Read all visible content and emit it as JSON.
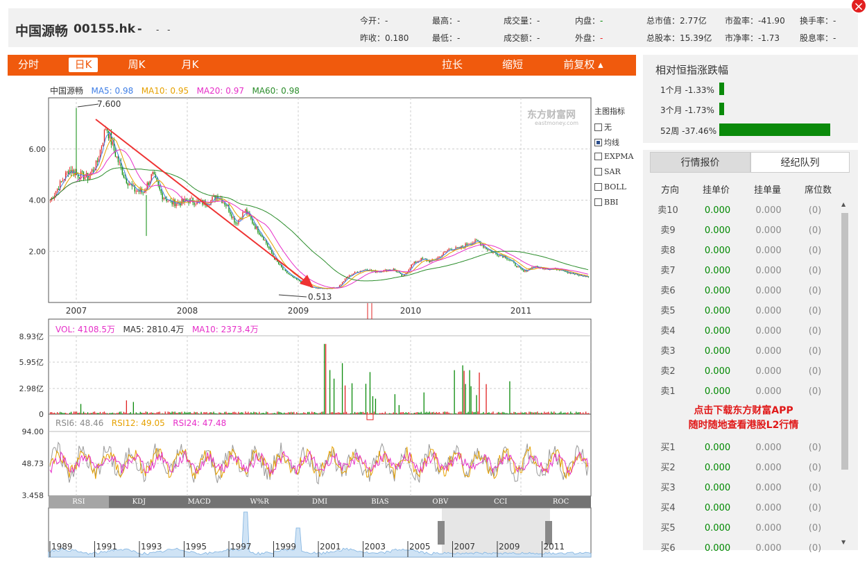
{
  "header": {
    "name": "中国源畅",
    "code": "00155.hk",
    "price": "-",
    "change": "-",
    "change_pct": "-",
    "quotes": [
      {
        "label": "今开：",
        "value": "-",
        "color": "normal"
      },
      {
        "label": "最高：",
        "value": "-",
        "color": "normal"
      },
      {
        "label": "成交量：",
        "value": "-",
        "color": "normal"
      },
      {
        "label": "内盘：",
        "value": "-",
        "color": "green"
      },
      {
        "label": "总市值：",
        "value": "2.77亿",
        "color": "normal"
      },
      {
        "label": "市盈率：",
        "value": "-41.90",
        "color": "normal"
      },
      {
        "label": "换手率：",
        "value": "-",
        "color": "normal"
      },
      {
        "label": "昨收：",
        "value": "0.180",
        "color": "normal"
      },
      {
        "label": "最低：",
        "value": "-",
        "color": "normal"
      },
      {
        "label": "成交额：",
        "value": "-",
        "color": "normal"
      },
      {
        "label": "外盘：",
        "value": "-",
        "color": "red"
      },
      {
        "label": "总股本：",
        "value": "15.39亿",
        "color": "normal"
      },
      {
        "label": "市净率：",
        "value": "-1.73",
        "color": "normal"
      },
      {
        "label": "股息率：",
        "value": "-",
        "color": "normal"
      }
    ]
  },
  "close_label": "×",
  "tabs": {
    "fenshi": "分时",
    "rik": "日K",
    "zhouk": "周K",
    "yuek": "月K",
    "lachang": "拉长",
    "suoduan": "缩短",
    "fuquan": "前复权 ▴"
  },
  "ma_legend": {
    "name": "中国源畅",
    "ma5": "MA5: 0.98",
    "ma10": "MA10: 0.95",
    "ma20": "MA20: 0.97",
    "ma60": "MA60: 0.98"
  },
  "vol_legend": {
    "vol": "VOL: 4108.5万",
    "ma5": "MA5: 2810.4万",
    "ma10": "MA10: 2373.4万"
  },
  "rsi_legend": {
    "rsi6": "RSI6: 48.46",
    "rsi12": "RSI12: 49.05",
    "rsi24": "RSI24: 47.48"
  },
  "watermark": {
    "cn": "东方财富网",
    "en": "eastmoney.com"
  },
  "indicators": {
    "title": "主图指标",
    "items": [
      {
        "label": "无",
        "checked": false
      },
      {
        "label": "均线",
        "checked": true
      },
      {
        "label": "EXPMA",
        "checked": false
      },
      {
        "label": "SAR",
        "checked": false
      },
      {
        "label": "BOLL",
        "checked": false
      },
      {
        "label": "BBI",
        "checked": false
      }
    ]
  },
  "sub_tabs": [
    "RSI",
    "KDJ",
    "MACD",
    "W%R",
    "DMI",
    "BIAS",
    "OBV",
    "CCI",
    "ROC"
  ],
  "chart_data": [
    {
      "type": "candlestick",
      "title": "中国源畅",
      "x": [
        "2007",
        "2008",
        "2009",
        "2010",
        "2011"
      ],
      "ytick_labels": [
        "6.00",
        "4.00",
        "2.00"
      ],
      "ylim": [
        0,
        8.0
      ],
      "annotations": [
        {
          "text": "7.600",
          "value": 7.6
        },
        {
          "text": "0.513",
          "value": 0.513
        }
      ],
      "close_trend": [
        4.0,
        4.6,
        5.2,
        5.0,
        4.9,
        5.4,
        6.9,
        5.8,
        4.9,
        4.4,
        4.3,
        5.0,
        4.2,
        3.9,
        3.9,
        4.0,
        3.9,
        3.9,
        4.2,
        3.8,
        3.1,
        3.6,
        3.0,
        2.5,
        1.8,
        1.3,
        1.0,
        0.8,
        0.6,
        0.55,
        0.55,
        0.6,
        1.0,
        1.2,
        1.3,
        1.2,
        1.25,
        1.3,
        1.0,
        1.5,
        1.7,
        1.6,
        1.8,
        2.1,
        2.1,
        2.3,
        2.4,
        2.1,
        1.9,
        1.8,
        1.5,
        1.2,
        1.4,
        1.35,
        1.3,
        1.3,
        1.15,
        1.05,
        1.0
      ]
    },
    {
      "type": "bar",
      "title": "VOL",
      "ytick_labels": [
        "8.93亿",
        "5.95亿",
        "2.98亿",
        "0"
      ],
      "ylim": [
        0,
        8.93
      ]
    },
    {
      "type": "line",
      "title": "RSI",
      "ytick_labels": [
        "94.00",
        "48.73",
        "3.458"
      ],
      "ylim": [
        3.458,
        94
      ],
      "series": [
        {
          "name": "RSI6"
        },
        {
          "name": "RSI12"
        },
        {
          "name": "RSI24"
        }
      ]
    },
    {
      "type": "area",
      "title": "overview",
      "x": [
        "1989",
        "1991",
        "1993",
        "1995",
        "1997",
        "1999",
        "2001",
        "2003",
        "2005",
        "2007",
        "2009",
        "2011"
      ]
    }
  ],
  "relative": {
    "title": "相对恒指涨跌幅",
    "rows": [
      {
        "label": "1个月 -1.33%",
        "value": -1.33
      },
      {
        "label": "3个月 -1.73%",
        "value": -1.73
      },
      {
        "label": "52周 -37.46%",
        "value": -37.46
      }
    ]
  },
  "quote_tabs": {
    "active": "行情报价",
    "other": "经纪队列"
  },
  "quote_headers": [
    "方向",
    "挂单价",
    "挂单量",
    "席位数"
  ],
  "orderbook": {
    "sell": [
      {
        "label": "卖10",
        "price": "0.000",
        "size": "0.000",
        "count": "(0)"
      },
      {
        "label": "卖9",
        "price": "0.000",
        "size": "0.000",
        "count": "(0)"
      },
      {
        "label": "卖8",
        "price": "0.000",
        "size": "0.000",
        "count": "(0)"
      },
      {
        "label": "卖7",
        "price": "0.000",
        "size": "0.000",
        "count": "(0)"
      },
      {
        "label": "卖6",
        "price": "0.000",
        "size": "0.000",
        "count": "(0)"
      },
      {
        "label": "卖5",
        "price": "0.000",
        "size": "0.000",
        "count": "(0)"
      },
      {
        "label": "卖4",
        "price": "0.000",
        "size": "0.000",
        "count": "(0)"
      },
      {
        "label": "卖3",
        "price": "0.000",
        "size": "0.000",
        "count": "(0)"
      },
      {
        "label": "卖2",
        "price": "0.000",
        "size": "0.000",
        "count": "(0)"
      },
      {
        "label": "卖1",
        "price": "0.000",
        "size": "0.000",
        "count": "(0)"
      }
    ],
    "buy": [
      {
        "label": "买1",
        "price": "0.000",
        "size": "0.000",
        "count": "(0)"
      },
      {
        "label": "买2",
        "price": "0.000",
        "size": "0.000",
        "count": "(0)"
      },
      {
        "label": "买3",
        "price": "0.000",
        "size": "0.000",
        "count": "(0)"
      },
      {
        "label": "买4",
        "price": "0.000",
        "size": "0.000",
        "count": "(0)"
      },
      {
        "label": "买5",
        "price": "0.000",
        "size": "0.000",
        "count": "(0)"
      },
      {
        "label": "买6",
        "price": "0.000",
        "size": "0.000",
        "count": "(0)"
      }
    ]
  },
  "promo": {
    "line1": "点击下载东方财富APP",
    "line2": "随时随地查看港股L2行情"
  }
}
